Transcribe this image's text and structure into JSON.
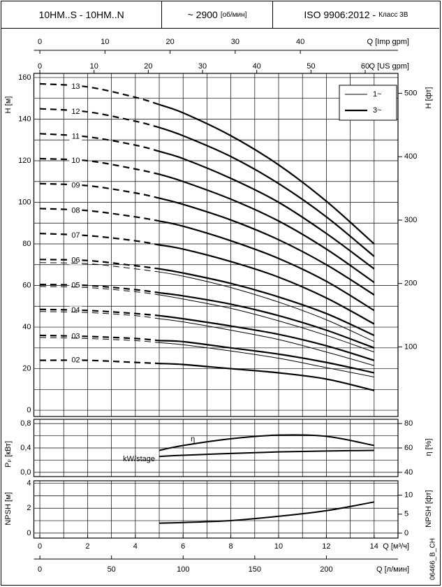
{
  "header": {
    "model": "10HM..S - 10HM..N",
    "speed": "~ 2900",
    "speed_unit": "[об/мин]",
    "standard": "ISO 9906:2012 -",
    "class": "Класс 3B"
  },
  "code": "06466_B_CH",
  "chart_data": [
    {
      "type": "line",
      "ylabel": "H [м]",
      "y2label": "H [фт]",
      "xlim": [
        -0.25,
        15
      ],
      "ylim": [
        -3,
        162
      ],
      "y2lim": [
        -9.8,
        531.5
      ],
      "yticks": [
        0,
        20,
        40,
        60,
        80,
        100,
        120,
        140,
        160
      ],
      "y2ticks": [
        100,
        200,
        300,
        400,
        500
      ],
      "grid_x": [
        0,
        1,
        2,
        3,
        4,
        5,
        6,
        7,
        8,
        9,
        10,
        11,
        12,
        13,
        14,
        15
      ],
      "grid_y": [
        0,
        10,
        20,
        30,
        40,
        50,
        60,
        70,
        80,
        90,
        100,
        110,
        120,
        130,
        140,
        150,
        160
      ],
      "xaxes_top": [
        {
          "label": "Q [Imp gpm]",
          "xlim": [
            -0.92,
            55
          ],
          "ticks": [
            0,
            10,
            20,
            30,
            40
          ]
        },
        {
          "label": "Q [US gpm]",
          "xlim": [
            -1.1,
            66.05
          ],
          "ticks": [
            0,
            10,
            20,
            30,
            40,
            50,
            60
          ]
        }
      ],
      "legend": [
        {
          "label": "1~",
          "width": 1
        },
        {
          "label": "3~",
          "width": 2.2
        }
      ],
      "dash_until": 5,
      "x": [
        0,
        2,
        4,
        5,
        6,
        8,
        10,
        12,
        14
      ],
      "series": [
        {
          "stage": "13",
          "phase": "3~",
          "values": [
            157,
            155.5,
            150.5,
            147,
            143,
            132,
            118,
            100.5,
            80
          ]
        },
        {
          "stage": "12",
          "phase": "3~",
          "values": [
            145,
            143.5,
            139,
            136,
            132,
            122,
            109,
            93,
            74
          ]
        },
        {
          "stage": "11",
          "phase": "3~",
          "values": [
            133,
            131.5,
            127.5,
            124.5,
            121,
            111.5,
            100,
            85,
            68
          ]
        },
        {
          "stage": "10",
          "phase": "3~",
          "values": [
            121,
            120,
            116,
            113.5,
            110,
            101.5,
            91,
            77.5,
            61.5
          ]
        },
        {
          "stage": "09",
          "phase": "3~",
          "values": [
            109,
            108,
            104.5,
            102,
            99,
            91.5,
            82,
            70,
            55.5
          ]
        },
        {
          "stage": "08",
          "phase": "3~",
          "values": [
            97,
            96,
            93,
            91,
            88.5,
            81.5,
            73,
            62,
            48
          ]
        },
        {
          "stage": "07",
          "phase": "3~",
          "values": [
            85,
            84,
            81.5,
            79.5,
            77.5,
            71.5,
            64,
            54,
            41.5
          ]
        },
        {
          "stage": "06",
          "phase": "3~",
          "values": [
            72.5,
            72,
            69.5,
            68,
            66,
            61,
            54.5,
            46.5,
            36
          ]
        },
        {
          "stage": "05",
          "phase": "3~",
          "values": [
            60.5,
            60,
            58,
            56.5,
            55,
            51,
            45.5,
            38.5,
            30
          ]
        },
        {
          "stage": "04",
          "phase": "3~",
          "values": [
            48.5,
            48,
            46.5,
            45.5,
            44,
            40.5,
            36.5,
            31,
            24
          ]
        },
        {
          "stage": "03",
          "phase": "3~",
          "values": [
            36,
            35.5,
            34.5,
            33.5,
            33,
            30,
            27,
            23,
            18
          ]
        },
        {
          "stage": "02",
          "phase": "3~",
          "values": [
            24,
            24,
            23,
            22.5,
            22,
            20,
            18,
            15,
            9.5
          ]
        },
        {
          "phase": "1~",
          "values": [
            71,
            70.5,
            68,
            66.5,
            64.5,
            59,
            52,
            43.5,
            33
          ]
        },
        {
          "phase": "1~",
          "values": [
            59.5,
            59,
            57,
            55.5,
            53.5,
            49,
            43,
            36,
            28
          ]
        },
        {
          "phase": "1~",
          "values": [
            47.5,
            47,
            45.5,
            44,
            42.5,
            38.5,
            34,
            28,
            21.5
          ]
        },
        {
          "phase": "1~",
          "values": [
            35,
            34.5,
            33.5,
            32.5,
            31.5,
            28.5,
            25,
            20.5,
            16
          ]
        }
      ]
    },
    {
      "type": "line",
      "ylabel": "Pₚ [кВт]",
      "y2label": "η [%]",
      "xlim": [
        -0.25,
        15
      ],
      "ylim": [
        -0.07,
        0.87
      ],
      "y2lim": [
        36.5,
        83.5
      ],
      "yticks": [
        {
          "value": 0,
          "label": "0,0"
        },
        {
          "value": 0.4,
          "label": "0,4"
        },
        {
          "value": 0.8,
          "label": "0,8"
        }
      ],
      "y2ticks": [
        40,
        60,
        80
      ],
      "grid_x": [
        0,
        1,
        2,
        3,
        4,
        5,
        6,
        7,
        8,
        9,
        10,
        11,
        12,
        13,
        14,
        15
      ],
      "grid_y": [
        0,
        0.2,
        0.4,
        0.6,
        0.8
      ],
      "series": [
        {
          "name": "kW/stage",
          "axis": "y",
          "x": [
            5,
            6,
            8,
            10,
            12,
            14
          ],
          "values": [
            0.26,
            0.28,
            0.31,
            0.335,
            0.35,
            0.36
          ]
        },
        {
          "name": "η",
          "axis": "y2",
          "x": [
            5,
            6,
            8,
            10,
            12,
            14
          ],
          "values": [
            58,
            62,
            67.5,
            70.5,
            69.5,
            62
          ]
        }
      ]
    },
    {
      "type": "line",
      "ylabel": "NPSH [м]",
      "y2label": "NPSH [фт]",
      "xlim": [
        -0.25,
        15
      ],
      "ylim": [
        -0.4,
        4.2
      ],
      "y2lim": [
        -1.3,
        13.8
      ],
      "yticks": [
        0,
        2,
        4
      ],
      "y2ticks": [
        0,
        5,
        10
      ],
      "grid_x": [
        0,
        1,
        2,
        3,
        4,
        5,
        6,
        7,
        8,
        9,
        10,
        11,
        12,
        13,
        14,
        15
      ],
      "grid_y": [
        0,
        1,
        2,
        3,
        4
      ],
      "xaxes_bottom": [
        {
          "label": "Q [м³/ч]",
          "xlim": [
            -0.25,
            15
          ],
          "ticks": [
            0,
            2,
            4,
            6,
            8,
            10,
            12,
            14
          ]
        },
        {
          "label": "Q [л/мин]",
          "xlim": [
            -4.2,
            250
          ],
          "ticks": [
            0,
            50,
            100,
            150,
            200
          ]
        }
      ],
      "series": [
        {
          "axis": "y",
          "x": [
            5,
            6,
            8,
            10,
            12,
            14
          ],
          "values": [
            0.8,
            0.85,
            1.0,
            1.35,
            1.8,
            2.5
          ]
        }
      ]
    }
  ]
}
